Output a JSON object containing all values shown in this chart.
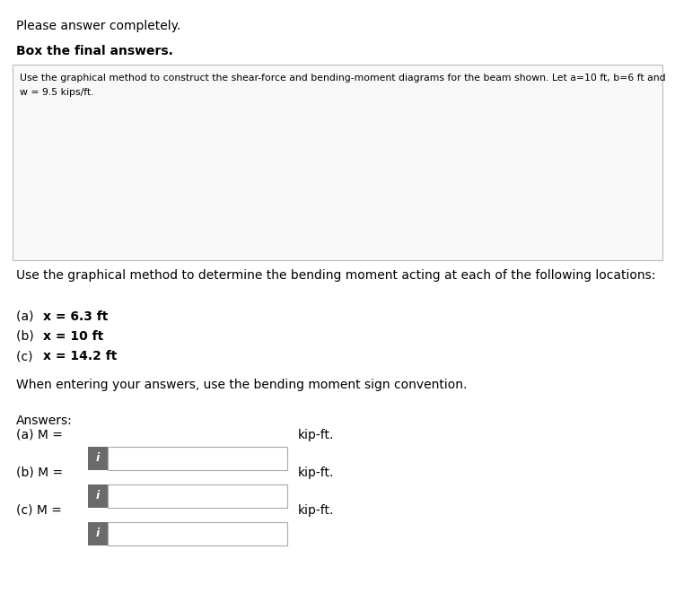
{
  "title_line1": "Please answer completely.",
  "title_line2": "Box the final answers.",
  "problem_text_line1": "Use the graphical method to construct the shear-force and bending-moment diagrams for the beam shown. Let a=10 ft, b=6 ft and",
  "problem_text_line2": "w = 9.5 kips/ft.",
  "question_text": "Use the graphical method to determine the bending moment acting at each of the following locations:",
  "parts_prefix": [
    "(a) ",
    "(b) ",
    "(c) "
  ],
  "parts_bold": [
    "x = 6.3 ft",
    "x = 10 ft",
    "x = 14.2 ft"
  ],
  "sign_convention_text": "When entering your answers, use the bending moment sign convention.",
  "answers_label": "Answers:",
  "answer_labels": [
    "(a) M = ",
    "(b) M = ",
    "(c) M = "
  ],
  "unit": "kip-ft.",
  "bg_color": "#ffffff",
  "text_color": "#000000",
  "box_border_color": "#aaaaaa",
  "info_box_color": "#6b6b6b",
  "beam_color": "#cccccc",
  "beam_color2": "#b0b0b0",
  "beam_outline": "#777777",
  "arrow_color": "#444444",
  "support_color": "#777777",
  "problem_box_border": "#bbbbbb",
  "problem_box_bg": "#f8f8f8"
}
